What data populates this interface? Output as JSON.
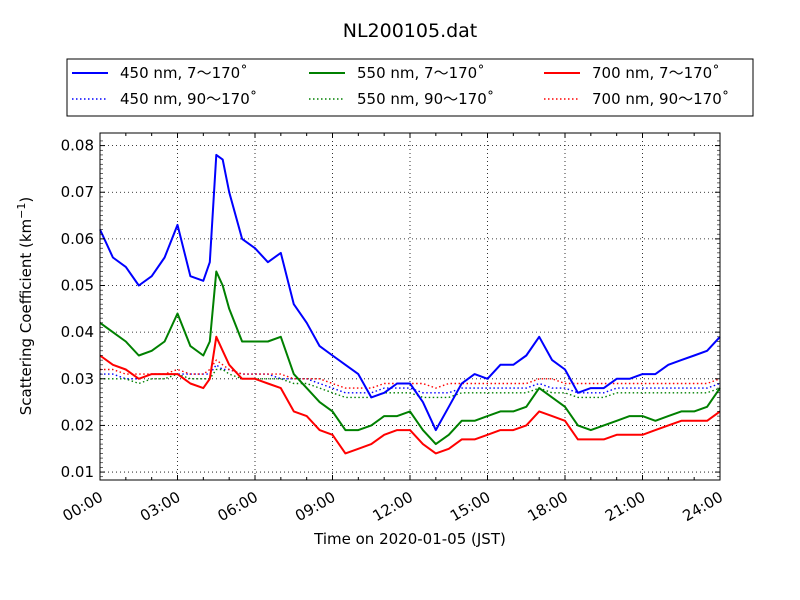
{
  "chart_data": {
    "type": "line",
    "title": "NL200105.dat",
    "xlabel": "Time on 2020-01-05 (JST)",
    "ylabel": "Scattering Coefficient (km",
    "ylabel_sup": "−1",
    "ylabel_tail": ")",
    "xlim": [
      "00:00",
      "24:00"
    ],
    "ylim": [
      0.0083,
      0.0827
    ],
    "x_ticks": [
      "00:00",
      "03:00",
      "06:00",
      "09:00",
      "12:00",
      "15:00",
      "18:00",
      "21:00",
      "24:00"
    ],
    "y_ticks": [
      "0.01",
      "0.02",
      "0.03",
      "0.04",
      "0.05",
      "0.06",
      "0.07",
      "0.08"
    ],
    "grid": true,
    "legend_position": "top, outside plot",
    "x": [
      "00:00",
      "00:30",
      "01:00",
      "01:30",
      "02:00",
      "02:30",
      "03:00",
      "03:30",
      "04:00",
      "04:15",
      "04:30",
      "04:45",
      "05:00",
      "05:30",
      "06:00",
      "06:30",
      "07:00",
      "07:30",
      "08:00",
      "08:30",
      "09:00",
      "09:30",
      "10:00",
      "10:30",
      "11:00",
      "11:30",
      "12:00",
      "12:30",
      "13:00",
      "13:30",
      "14:00",
      "14:30",
      "15:00",
      "15:30",
      "16:00",
      "16:30",
      "17:00",
      "17:30",
      "18:00",
      "18:30",
      "19:00",
      "19:30",
      "20:00",
      "20:30",
      "21:00",
      "21:30",
      "22:00",
      "22:30",
      "23:00",
      "23:30",
      "24:00"
    ],
    "series": [
      {
        "name": "450 nm, 7～170˚",
        "color": "#0000ff",
        "style": "solid",
        "values": [
          0.062,
          0.056,
          0.054,
          0.05,
          0.052,
          0.056,
          0.063,
          0.052,
          0.051,
          0.055,
          0.078,
          0.077,
          0.07,
          0.06,
          0.058,
          0.055,
          0.057,
          0.046,
          0.042,
          0.037,
          0.035,
          0.033,
          0.031,
          0.026,
          0.027,
          0.029,
          0.029,
          0.025,
          0.019,
          0.024,
          0.029,
          0.031,
          0.03,
          0.033,
          0.033,
          0.035,
          0.039,
          0.034,
          0.032,
          0.027,
          0.028,
          0.028,
          0.03,
          0.03,
          0.031,
          0.031,
          0.033,
          0.034,
          0.035,
          0.036,
          0.039
        ]
      },
      {
        "name": "550 nm, 7～170˚",
        "color": "#008000",
        "style": "solid",
        "values": [
          0.042,
          0.04,
          0.038,
          0.035,
          0.036,
          0.038,
          0.044,
          0.037,
          0.035,
          0.038,
          0.053,
          0.05,
          0.045,
          0.038,
          0.038,
          0.038,
          0.039,
          0.031,
          0.028,
          0.025,
          0.023,
          0.019,
          0.019,
          0.02,
          0.022,
          0.022,
          0.023,
          0.019,
          0.016,
          0.018,
          0.021,
          0.021,
          0.022,
          0.023,
          0.023,
          0.024,
          0.028,
          0.026,
          0.024,
          0.02,
          0.019,
          0.02,
          0.021,
          0.022,
          0.022,
          0.021,
          0.022,
          0.023,
          0.023,
          0.024,
          0.028
        ]
      },
      {
        "name": "700 nm, 7～170˚",
        "color": "#ff0000",
        "style": "solid",
        "values": [
          0.035,
          0.033,
          0.032,
          0.03,
          0.031,
          0.031,
          0.031,
          0.029,
          0.028,
          0.03,
          0.039,
          0.036,
          0.033,
          0.03,
          0.03,
          0.029,
          0.028,
          0.023,
          0.022,
          0.019,
          0.018,
          0.014,
          0.015,
          0.016,
          0.018,
          0.019,
          0.019,
          0.016,
          0.014,
          0.015,
          0.017,
          0.017,
          0.018,
          0.019,
          0.019,
          0.02,
          0.023,
          0.022,
          0.021,
          0.017,
          0.017,
          0.017,
          0.018,
          0.018,
          0.018,
          0.019,
          0.02,
          0.021,
          0.021,
          0.021,
          0.023
        ]
      },
      {
        "name": "450 nm, 90～170˚",
        "color": "#0000ff",
        "style": "dotted",
        "values": [
          0.031,
          0.031,
          0.03,
          0.03,
          0.031,
          0.031,
          0.031,
          0.031,
          0.031,
          0.031,
          0.033,
          0.032,
          0.032,
          0.031,
          0.031,
          0.031,
          0.03,
          0.03,
          0.03,
          0.029,
          0.028,
          0.027,
          0.027,
          0.027,
          0.028,
          0.028,
          0.028,
          0.027,
          0.027,
          0.027,
          0.028,
          0.028,
          0.028,
          0.028,
          0.028,
          0.028,
          0.029,
          0.028,
          0.028,
          0.027,
          0.027,
          0.027,
          0.028,
          0.028,
          0.028,
          0.028,
          0.028,
          0.028,
          0.028,
          0.028,
          0.029
        ]
      },
      {
        "name": "550 nm, 90～170˚",
        "color": "#008000",
        "style": "dotted",
        "values": [
          0.03,
          0.03,
          0.03,
          0.029,
          0.03,
          0.03,
          0.031,
          0.03,
          0.03,
          0.03,
          0.032,
          0.032,
          0.031,
          0.03,
          0.03,
          0.03,
          0.03,
          0.029,
          0.029,
          0.028,
          0.027,
          0.026,
          0.026,
          0.026,
          0.027,
          0.027,
          0.027,
          0.026,
          0.026,
          0.026,
          0.027,
          0.027,
          0.027,
          0.027,
          0.027,
          0.027,
          0.028,
          0.027,
          0.027,
          0.026,
          0.026,
          0.026,
          0.027,
          0.027,
          0.027,
          0.027,
          0.027,
          0.027,
          0.027,
          0.027,
          0.028
        ]
      },
      {
        "name": "700 nm, 90～170˚",
        "color": "#ff0000",
        "style": "dotted",
        "values": [
          0.032,
          0.032,
          0.031,
          0.031,
          0.031,
          0.031,
          0.032,
          0.031,
          0.031,
          0.032,
          0.034,
          0.033,
          0.032,
          0.031,
          0.031,
          0.031,
          0.031,
          0.03,
          0.03,
          0.03,
          0.029,
          0.028,
          0.028,
          0.028,
          0.029,
          0.029,
          0.029,
          0.029,
          0.028,
          0.029,
          0.029,
          0.029,
          0.029,
          0.029,
          0.029,
          0.029,
          0.03,
          0.03,
          0.029,
          0.029,
          0.029,
          0.029,
          0.029,
          0.029,
          0.029,
          0.029,
          0.029,
          0.029,
          0.029,
          0.029,
          0.03
        ]
      }
    ],
    "legend": [
      {
        "label": "450 nm, 7～170˚",
        "series": 0
      },
      {
        "label": "550 nm, 7～170˚",
        "series": 1
      },
      {
        "label": "700 nm, 7～170˚",
        "series": 2
      },
      {
        "label": "450 nm, 90～170˚",
        "series": 3
      },
      {
        "label": "550 nm, 90～170˚",
        "series": 4
      },
      {
        "label": "700 nm, 90～170˚",
        "series": 5
      }
    ]
  }
}
